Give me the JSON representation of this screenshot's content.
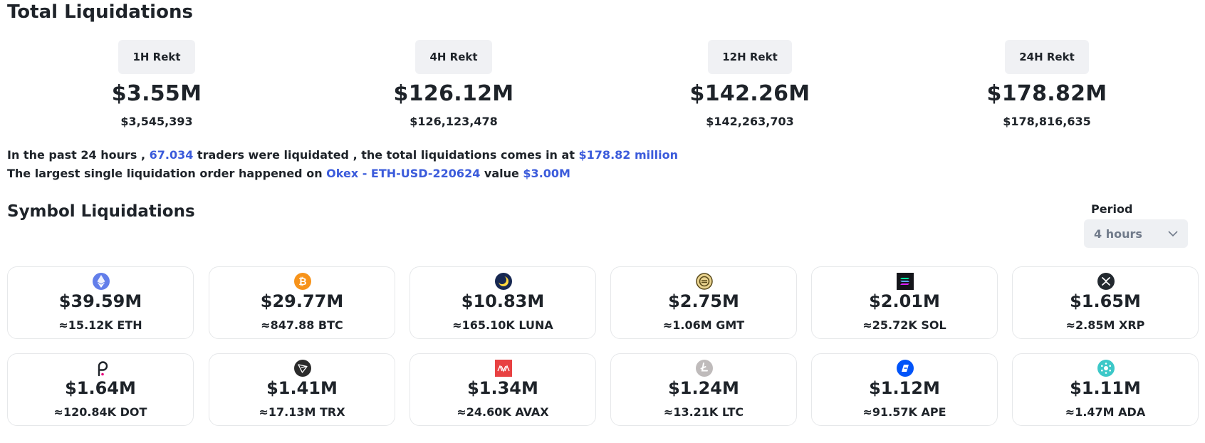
{
  "page_title": "Total Liquidations",
  "rekt": [
    {
      "tab": "1H Rekt",
      "amount": "$3.55M",
      "exact": "$3,545,393"
    },
    {
      "tab": "4H Rekt",
      "amount": "$126.12M",
      "exact": "$126,123,478"
    },
    {
      "tab": "12H Rekt",
      "amount": "$142.26M",
      "exact": "$142,263,703"
    },
    {
      "tab": "24H Rekt",
      "amount": "$178.82M",
      "exact": "$178,816,635"
    }
  ],
  "summary": {
    "line1_a": "In the past 24 hours , ",
    "traders": "67.034",
    "line1_b": " traders were liquidated , the total liquidations comes in at ",
    "total": "$178.82 million",
    "line2_a": "The largest single liquidation order happened on ",
    "order": "Okex - ETH-USD-220624",
    "line2_b": " value ",
    "value": "$3.00M"
  },
  "section_title": "Symbol Liquidations",
  "period": {
    "label": "Period",
    "selected": "4 hours"
  },
  "symbols": [
    {
      "icon": "eth-icon",
      "amount": "$39.59M",
      "sub": "≈15.12K ETH",
      "color": "#627eea"
    },
    {
      "icon": "btc-icon",
      "amount": "$29.77M",
      "sub": "≈847.88 BTC",
      "color": "#f7931a"
    },
    {
      "icon": "luna-icon",
      "amount": "$10.83M",
      "sub": "≈165.10K LUNA",
      "color": "#172852"
    },
    {
      "icon": "gmt-icon",
      "amount": "$2.75M",
      "sub": "≈1.06M GMT",
      "color": "#c9a227"
    },
    {
      "icon": "sol-icon",
      "amount": "$2.01M",
      "sub": "≈25.72K SOL",
      "color": "#14151a"
    },
    {
      "icon": "xrp-icon",
      "amount": "$1.65M",
      "sub": "≈2.85M XRP",
      "color": "#23292f"
    },
    {
      "icon": "dot-icon",
      "amount": "$1.64M",
      "sub": "≈120.84K DOT",
      "color": "#1e2329"
    },
    {
      "icon": "trx-icon",
      "amount": "$1.41M",
      "sub": "≈17.13M TRX",
      "color": "#2b2b2b"
    },
    {
      "icon": "avax-icon",
      "amount": "$1.34M",
      "sub": "≈24.60K AVAX",
      "color": "#e84142"
    },
    {
      "icon": "ltc-icon",
      "amount": "$1.24M",
      "sub": "≈13.21K LTC",
      "color": "#bfbbbb"
    },
    {
      "icon": "ape-icon",
      "amount": "$1.12M",
      "sub": "≈91.57K APE",
      "color": "#0054f9"
    },
    {
      "icon": "ada-icon",
      "amount": "$1.11M",
      "sub": "≈1.47M ADA",
      "color": "#3cc8c8"
    }
  ]
}
